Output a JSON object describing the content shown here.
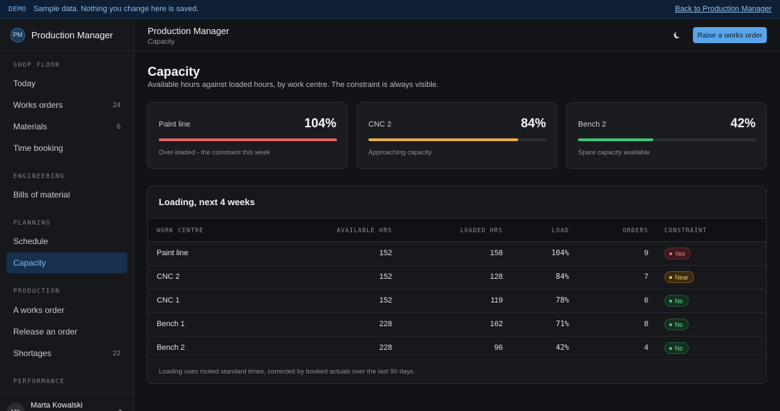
{
  "demo_bar": {
    "tag": "DEMO",
    "message": "Sample data. Nothing you change here is saved.",
    "link": "Back to Production Manager"
  },
  "brand": {
    "initials": "PM",
    "name": "Production Manager"
  },
  "sidebar": {
    "sections": [
      {
        "title": "SHOP FLOOR"
      },
      {
        "title": "ENGINEERING"
      },
      {
        "title": "PLANNING"
      },
      {
        "title": "PRODUCTION"
      },
      {
        "title": "PERFORMANCE"
      }
    ],
    "items": [
      {
        "label": "Today",
        "count": ""
      },
      {
        "label": "Works orders",
        "count": "24"
      },
      {
        "label": "Materials",
        "count": "6"
      },
      {
        "label": "Time booking",
        "count": ""
      },
      {
        "label": "Bills of material",
        "count": ""
      },
      {
        "label": "Schedule",
        "count": ""
      },
      {
        "label": "Capacity",
        "count": "",
        "active": true
      },
      {
        "label": "A works order",
        "count": ""
      },
      {
        "label": "Release an order",
        "count": ""
      },
      {
        "label": "Shortages",
        "count": "22"
      }
    ],
    "user": {
      "initials": "MK",
      "name": "Marta Kowalski"
    }
  },
  "header": {
    "title": "Production Manager",
    "breadcrumb": "Capacity",
    "theme_icon": "moon-icon",
    "primary_button": "Raise a works order"
  },
  "page": {
    "title": "Capacity",
    "subtitle": "Available hours against loaded hours, by work centre. The constraint is always visible."
  },
  "cards": [
    {
      "label": "Paint line",
      "percent": "104%",
      "load_fraction": 1.0,
      "note": "Over-loaded - the constraint this week",
      "color": "#e5636c"
    },
    {
      "label": "CNC 2",
      "percent": "84%",
      "load_fraction": 0.84,
      "note": "Approaching capacity",
      "color": "#e8b04a"
    },
    {
      "label": "Bench 2",
      "percent": "42%",
      "load_fraction": 0.42,
      "note": "Spare capacity available",
      "color": "#3fc47c"
    }
  ],
  "table": {
    "title": "Loading, next 4 weeks",
    "columns": {
      "work_centre": "WORK CENTRE",
      "available": "AVAILABLE HRS",
      "loaded": "LOADED HRS",
      "load": "LOAD",
      "orders": "ORDERS",
      "constraint": "CONSTRAINT"
    },
    "rows": [
      {
        "work_centre": "Paint line",
        "available": "152",
        "loaded": "158",
        "load": "104%",
        "orders": "9",
        "constraint": "Yes",
        "status": "red"
      },
      {
        "work_centre": "CNC 2",
        "available": "152",
        "loaded": "128",
        "load": "84%",
        "orders": "7",
        "constraint": "Near",
        "status": "amber"
      },
      {
        "work_centre": "CNC 1",
        "available": "152",
        "loaded": "119",
        "load": "78%",
        "orders": "6",
        "constraint": "No",
        "status": "green"
      },
      {
        "work_centre": "Bench 1",
        "available": "228",
        "loaded": "162",
        "load": "71%",
        "orders": "8",
        "constraint": "No",
        "status": "green"
      },
      {
        "work_centre": "Bench 2",
        "available": "228",
        "loaded": "96",
        "load": "42%",
        "orders": "4",
        "constraint": "No",
        "status": "green"
      }
    ],
    "footnote": "Loading uses routed standard times, corrected by booked actuals over the last 90 days."
  },
  "colors": {
    "accent": "#5aa5ea",
    "danger": "#e5636c",
    "warning": "#e8b04a",
    "success": "#3fc47c"
  }
}
